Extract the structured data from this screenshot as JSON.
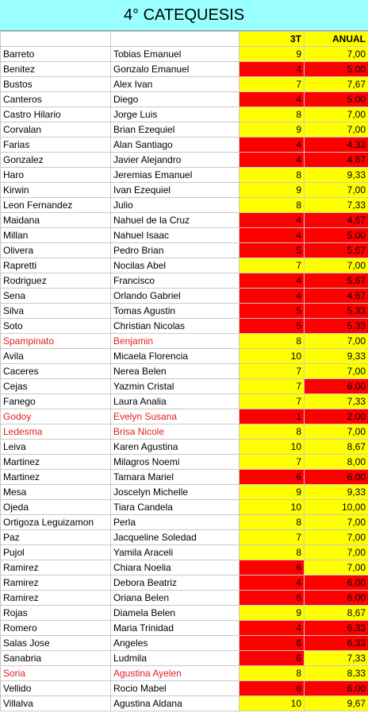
{
  "title": "4° CATEQUESIS",
  "headers": {
    "c1": "",
    "c2": "",
    "c3": "3T",
    "c4": "ANUAL"
  },
  "colors": {
    "yellow": "#ffff00",
    "red": "#ff0000",
    "title_bg": "#99ffff",
    "red_text": "#e02020"
  },
  "rows": [
    {
      "apellido": "Barreto",
      "nombre": "Tobias Emanuel",
      "t3": "9",
      "anual": "7,00",
      "t3_bg": "yellow",
      "anual_bg": "yellow",
      "red_text": false
    },
    {
      "apellido": "Benitez",
      "nombre": "Gonzalo Emanuel",
      "t3": "4",
      "anual": "5,00",
      "t3_bg": "red",
      "anual_bg": "red",
      "red_text": false
    },
    {
      "apellido": "Bustos",
      "nombre": "Alex Ivan",
      "t3": "7",
      "anual": "7,67",
      "t3_bg": "yellow",
      "anual_bg": "yellow",
      "red_text": false
    },
    {
      "apellido": "Canteros",
      "nombre": "Diego",
      "t3": "4",
      "anual": "5,00",
      "t3_bg": "red",
      "anual_bg": "red",
      "red_text": false
    },
    {
      "apellido": "Castro Hilario",
      "nombre": "Jorge Luis",
      "t3": "8",
      "anual": "7,00",
      "t3_bg": "yellow",
      "anual_bg": "yellow",
      "red_text": false
    },
    {
      "apellido": "Corvalan",
      "nombre": "Brian Ezequiel",
      "t3": "9",
      "anual": "7,00",
      "t3_bg": "yellow",
      "anual_bg": "yellow",
      "red_text": false
    },
    {
      "apellido": "Farias",
      "nombre": "Alan Santiago",
      "t3": "4",
      "anual": "4,33",
      "t3_bg": "red",
      "anual_bg": "red",
      "red_text": false
    },
    {
      "apellido": "Gonzalez",
      "nombre": "Javier Alejandro",
      "t3": "4",
      "anual": "4,67",
      "t3_bg": "red",
      "anual_bg": "red",
      "red_text": false
    },
    {
      "apellido": "Haro",
      "nombre": "Jeremias Emanuel",
      "t3": "8",
      "anual": "9,33",
      "t3_bg": "yellow",
      "anual_bg": "yellow",
      "red_text": false
    },
    {
      "apellido": "Kirwin",
      "nombre": "Ivan Ezequiel",
      "t3": "9",
      "anual": "7,00",
      "t3_bg": "yellow",
      "anual_bg": "yellow",
      "red_text": false
    },
    {
      "apellido": "Leon Fernandez",
      "nombre": "Julio",
      "t3": "8",
      "anual": "7,33",
      "t3_bg": "yellow",
      "anual_bg": "yellow",
      "red_text": false
    },
    {
      "apellido": "Maidana",
      "nombre": "Nahuel de la Cruz",
      "t3": "4",
      "anual": "4,67",
      "t3_bg": "red",
      "anual_bg": "red",
      "red_text": false
    },
    {
      "apellido": "Millan",
      "nombre": "Nahuel Isaac",
      "t3": "4",
      "anual": "5,00",
      "t3_bg": "red",
      "anual_bg": "red",
      "red_text": false
    },
    {
      "apellido": "Olivera",
      "nombre": "Pedro Brian",
      "t3": "5",
      "anual": "5,67",
      "t3_bg": "red",
      "anual_bg": "red",
      "red_text": false
    },
    {
      "apellido": "Rapretti",
      "nombre": "Nocilas Abel",
      "t3": "7",
      "anual": "7,00",
      "t3_bg": "yellow",
      "anual_bg": "yellow",
      "red_text": false
    },
    {
      "apellido": "Rodriguez",
      "nombre": "Francisco",
      "t3": "4",
      "anual": "5,67",
      "t3_bg": "red",
      "anual_bg": "red",
      "red_text": false
    },
    {
      "apellido": "Sena",
      "nombre": "Orlando Gabriel",
      "t3": "4",
      "anual": "4,67",
      "t3_bg": "red",
      "anual_bg": "red",
      "red_text": false
    },
    {
      "apellido": "Silva",
      "nombre": "Tomas Agustin",
      "t3": "5",
      "anual": "5,33",
      "t3_bg": "red",
      "anual_bg": "red",
      "red_text": false
    },
    {
      "apellido": "Soto",
      "nombre": "Christian Nicolas",
      "t3": "5",
      "anual": "5,33",
      "t3_bg": "red",
      "anual_bg": "red",
      "red_text": false
    },
    {
      "apellido": "Spampinato",
      "nombre": "Benjamin",
      "t3": "8",
      "anual": "7,00",
      "t3_bg": "yellow",
      "anual_bg": "yellow",
      "red_text": true
    },
    {
      "apellido": "Avila",
      "nombre": "Micaela Florencia",
      "t3": "10",
      "anual": "9,33",
      "t3_bg": "yellow",
      "anual_bg": "yellow",
      "red_text": false
    },
    {
      "apellido": "Caceres",
      "nombre": "Nerea Belen",
      "t3": "7",
      "anual": "7,00",
      "t3_bg": "yellow",
      "anual_bg": "yellow",
      "red_text": false
    },
    {
      "apellido": "Cejas",
      "nombre": "Yazmin Cristal",
      "t3": "7",
      "anual": "6,00",
      "t3_bg": "yellow",
      "anual_bg": "red",
      "red_text": false
    },
    {
      "apellido": "Fanego",
      "nombre": "Laura Analia",
      "t3": "7",
      "anual": "7,33",
      "t3_bg": "yellow",
      "anual_bg": "yellow",
      "red_text": false
    },
    {
      "apellido": "Godoy",
      "nombre": "Evelyn Susana",
      "t3": "1",
      "anual": "2,00",
      "t3_bg": "red",
      "anual_bg": "red",
      "red_text": true
    },
    {
      "apellido": "Ledesma",
      "nombre": "Brisa Nicole",
      "t3": "8",
      "anual": "7,00",
      "t3_bg": "yellow",
      "anual_bg": "yellow",
      "red_text": true
    },
    {
      "apellido": "Leiva",
      "nombre": "Karen Agustina",
      "t3": "10",
      "anual": "8,67",
      "t3_bg": "yellow",
      "anual_bg": "yellow",
      "red_text": false
    },
    {
      "apellido": "Martinez",
      "nombre": "Milagros Noemi",
      "t3": "7",
      "anual": "8,00",
      "t3_bg": "yellow",
      "anual_bg": "yellow",
      "red_text": false
    },
    {
      "apellido": "Martinez",
      "nombre": "Tamara Mariel",
      "t3": "6",
      "anual": "6,00",
      "t3_bg": "red",
      "anual_bg": "red",
      "red_text": false
    },
    {
      "apellido": "Mesa",
      "nombre": "Joscelyn Michelle",
      "t3": "9",
      "anual": "9,33",
      "t3_bg": "yellow",
      "anual_bg": "yellow",
      "red_text": false
    },
    {
      "apellido": "Ojeda",
      "nombre": "Tiara Candela",
      "t3": "10",
      "anual": "10,00",
      "t3_bg": "yellow",
      "anual_bg": "yellow",
      "red_text": false
    },
    {
      "apellido": "Ortigoza Leguizamon",
      "nombre": "Perla",
      "t3": "8",
      "anual": "7,00",
      "t3_bg": "yellow",
      "anual_bg": "yellow",
      "red_text": false
    },
    {
      "apellido": "Paz",
      "nombre": "Jacqueline Soledad",
      "t3": "7",
      "anual": "7,00",
      "t3_bg": "yellow",
      "anual_bg": "yellow",
      "red_text": false
    },
    {
      "apellido": "Pujol",
      "nombre": "Yamila Araceli",
      "t3": "8",
      "anual": "7,00",
      "t3_bg": "yellow",
      "anual_bg": "yellow",
      "red_text": false
    },
    {
      "apellido": "Ramirez",
      "nombre": "Chiara Noelia",
      "t3": "6",
      "anual": "7,00",
      "t3_bg": "red",
      "anual_bg": "yellow",
      "red_text": false
    },
    {
      "apellido": "Ramirez",
      "nombre": "Debora Beatriz",
      "t3": "4",
      "anual": "6,00",
      "t3_bg": "red",
      "anual_bg": "red",
      "red_text": false
    },
    {
      "apellido": "Ramirez",
      "nombre": "Oriana Belen",
      "t3": "6",
      "anual": "6,00",
      "t3_bg": "red",
      "anual_bg": "red",
      "red_text": false
    },
    {
      "apellido": "Rojas",
      "nombre": "Diamela Belen",
      "t3": "9",
      "anual": "8,67",
      "t3_bg": "yellow",
      "anual_bg": "yellow",
      "red_text": false
    },
    {
      "apellido": "Romero",
      "nombre": "Maria Trinidad",
      "t3": "4",
      "anual": "6,33",
      "t3_bg": "red",
      "anual_bg": "red",
      "red_text": false
    },
    {
      "apellido": "Salas Jose",
      "nombre": "Angeles",
      "t3": "6",
      "anual": "6,33",
      "t3_bg": "red",
      "anual_bg": "red",
      "red_text": false
    },
    {
      "apellido": "Sanabria",
      "nombre": "Ludmila",
      "t3": "6",
      "anual": "7,33",
      "t3_bg": "red",
      "anual_bg": "yellow",
      "red_text": false
    },
    {
      "apellido": "Soria",
      "nombre": "Agustina Ayelen",
      "t3": "8",
      "anual": "8,33",
      "t3_bg": "yellow",
      "anual_bg": "yellow",
      "red_text": true
    },
    {
      "apellido": "Vellido",
      "nombre": "Rocio Mabel",
      "t3": "6",
      "anual": "6,00",
      "t3_bg": "red",
      "anual_bg": "red",
      "red_text": false
    },
    {
      "apellido": "Villalva",
      "nombre": "Agustina Aldana",
      "t3": "10",
      "anual": "9,67",
      "t3_bg": "yellow",
      "anual_bg": "yellow",
      "red_text": false
    }
  ]
}
